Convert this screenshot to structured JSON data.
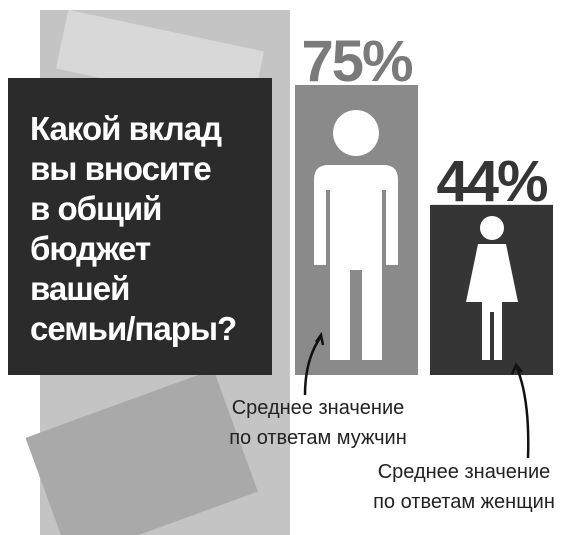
{
  "chart_data": {
    "type": "bar",
    "title_lines": [
      "Какой вклад",
      "вы вносите",
      "в общий",
      "бюджет",
      "вашей",
      "семьи/пары?"
    ],
    "categories": [
      "Среднее значение по ответам мужчин",
      "Среднее значение по ответам женщин"
    ],
    "values": [
      75,
      44
    ],
    "value_labels": [
      "75%",
      "44%"
    ],
    "colors": [
      "#8a8a8a",
      "#353535"
    ],
    "label_colors": [
      "#7a7a7a",
      "#353535"
    ]
  }
}
